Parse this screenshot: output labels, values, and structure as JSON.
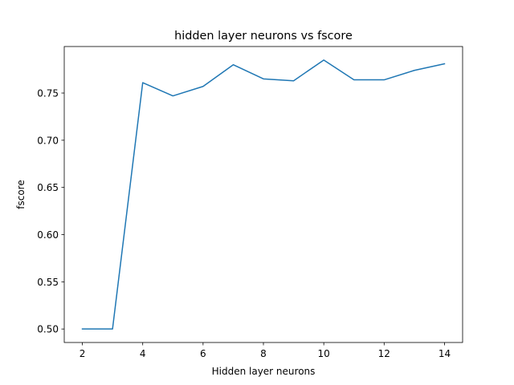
{
  "chart_data": {
    "type": "line",
    "title": "hidden layer neurons vs fscore",
    "xlabel": "Hidden layer neurons",
    "ylabel": "fscore",
    "x": [
      2,
      3,
      4,
      5,
      6,
      7,
      8,
      9,
      10,
      11,
      12,
      13,
      14
    ],
    "series": [
      {
        "values": [
          0.5,
          0.5,
          0.761,
          0.747,
          0.757,
          0.78,
          0.765,
          0.763,
          0.785,
          0.764,
          0.764,
          0.774,
          0.781
        ],
        "color": "#1f77b4"
      }
    ],
    "xlim": [
      1.4,
      14.6
    ],
    "ylim": [
      0.4857,
      0.7993
    ],
    "xticks": [
      2,
      4,
      6,
      8,
      10,
      12,
      14
    ],
    "xtick_labels": [
      "2",
      "4",
      "6",
      "8",
      "10",
      "12",
      "14"
    ],
    "yticks": [
      0.5,
      0.55,
      0.6,
      0.65,
      0.7,
      0.75
    ],
    "ytick_labels": [
      "0.50",
      "0.55",
      "0.60",
      "0.65",
      "0.70",
      "0.75"
    ],
    "grid": false,
    "legend": "none"
  }
}
